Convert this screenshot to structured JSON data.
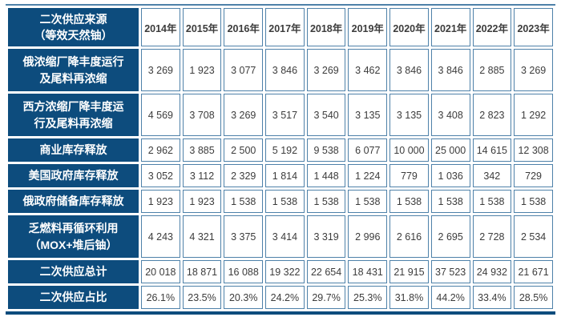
{
  "colors": {
    "navy": "#0d4c7d",
    "cell_border": "#4e81a9",
    "data_text": "#3c3c3c"
  },
  "chart_data": {
    "type": "table",
    "title": "二次供应来源（等效天然铀）",
    "corner_label": "二次供应来源\n（等效天然铀）",
    "columns": [
      "2014年",
      "2015年",
      "2016年",
      "2017年",
      "2018年",
      "2019年",
      "2020年",
      "2021年",
      "2022年",
      "2023年"
    ],
    "rows": [
      {
        "label": "俄浓缩厂降丰度运行\n及尾料再浓缩",
        "values": [
          "3 269",
          "1 923",
          "3 077",
          "3 846",
          "3 269",
          "3 462",
          "3 846",
          "3 846",
          "2 885",
          "3 269"
        ]
      },
      {
        "label": "西方浓缩厂降丰度运\n行及尾料再浓缩",
        "values": [
          "4 569",
          "3 708",
          "3 269",
          "3 517",
          "3 540",
          "3 135",
          "3 135",
          "3 408",
          "2 823",
          "1 292"
        ]
      },
      {
        "label": "商业库存释放",
        "values": [
          "2 962",
          "3 885",
          "2 500",
          "5 192",
          "9 538",
          "6 077",
          "10 000",
          "25 000",
          "14 615",
          "12 308"
        ]
      },
      {
        "label": "美国政府库存释放",
        "values": [
          "3 052",
          "3 112",
          "2 329",
          "1 814",
          "1 448",
          "1 224",
          "779",
          "1 036",
          "342",
          "729"
        ]
      },
      {
        "label": "俄政府储备库存释放",
        "values": [
          "1 923",
          "1 923",
          "1 538",
          "1 538",
          "1 538",
          "1 538",
          "1 538",
          "1 538",
          "1 538",
          "1 538"
        ]
      },
      {
        "label": "乏燃料再循环利用\n（MOX+堆后铀）",
        "values": [
          "4 243",
          "4 321",
          "3 375",
          "3 414",
          "3 319",
          "2 996",
          "2 616",
          "2 695",
          "2 728",
          "2 534"
        ]
      },
      {
        "label": "二次供应总计",
        "values": [
          "20 018",
          "18 871",
          "16 088",
          "19 322",
          "22 654",
          "18 431",
          "21 915",
          "37 523",
          "24 932",
          "21 671"
        ]
      },
      {
        "label": "二次供应占比",
        "values": [
          "26.1%",
          "23.5%",
          "20.3%",
          "24.2%",
          "29.7%",
          "25.3%",
          "31.8%",
          "44.2%",
          "33.4%",
          "28.5%"
        ]
      }
    ]
  }
}
